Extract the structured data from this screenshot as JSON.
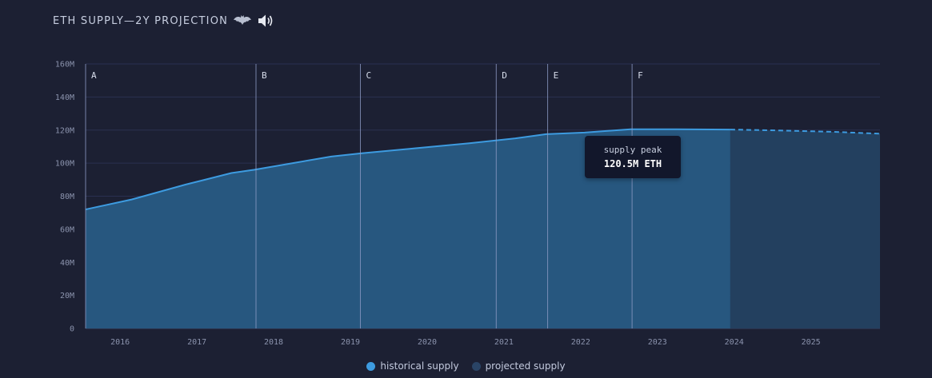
{
  "chart_data": {
    "type": "area",
    "title": "ETH SUPPLY—2Y PROJECTION",
    "title_icons": [
      "bat-icon",
      "speaker-icon"
    ],
    "y_ticks": [
      "0",
      "20M",
      "40M",
      "60M",
      "80M",
      "100M",
      "120M",
      "140M",
      "160M"
    ],
    "ylim": [
      0,
      160
    ],
    "x_ticks": [
      "2016",
      "2017",
      "2018",
      "2019",
      "2020",
      "2021",
      "2022",
      "2023",
      "2024",
      "2025"
    ],
    "xlim": [
      2015.6,
      2025.95
    ],
    "grid": true,
    "series": [
      {
        "name": "historical supply",
        "color": "#3d9be0",
        "x": [
          2015.6,
          2016.2,
          2016.9,
          2017.5,
          2017.8,
          2018.3,
          2018.8,
          2019.2,
          2019.9,
          2020.6,
          2021.2,
          2021.6,
          2022.1,
          2022.7,
          2023.3,
          2024.0
        ],
        "y": [
          72,
          78,
          87,
          94,
          96,
          100,
          104,
          106,
          109,
          112,
          115,
          117.5,
          118.5,
          120.5,
          120.5,
          120.3
        ]
      },
      {
        "name": "projected supply",
        "color": "#2a4466",
        "x": [
          2024.0,
          2024.6,
          2025.3,
          2025.95
        ],
        "y": [
          120.3,
          119.8,
          119,
          117.8
        ]
      }
    ],
    "markers": [
      {
        "label": "A",
        "x": 2015.6
      },
      {
        "label": "B",
        "x": 2017.82
      },
      {
        "label": "C",
        "x": 2019.18
      },
      {
        "label": "D",
        "x": 2020.95
      },
      {
        "label": "E",
        "x": 2021.62
      },
      {
        "label": "F",
        "x": 2022.72
      }
    ],
    "annotation": {
      "label": "supply peak",
      "value": "120.5M ETH",
      "x": 2022.72,
      "y": 120.5
    },
    "legend_position": "bottom-center"
  }
}
